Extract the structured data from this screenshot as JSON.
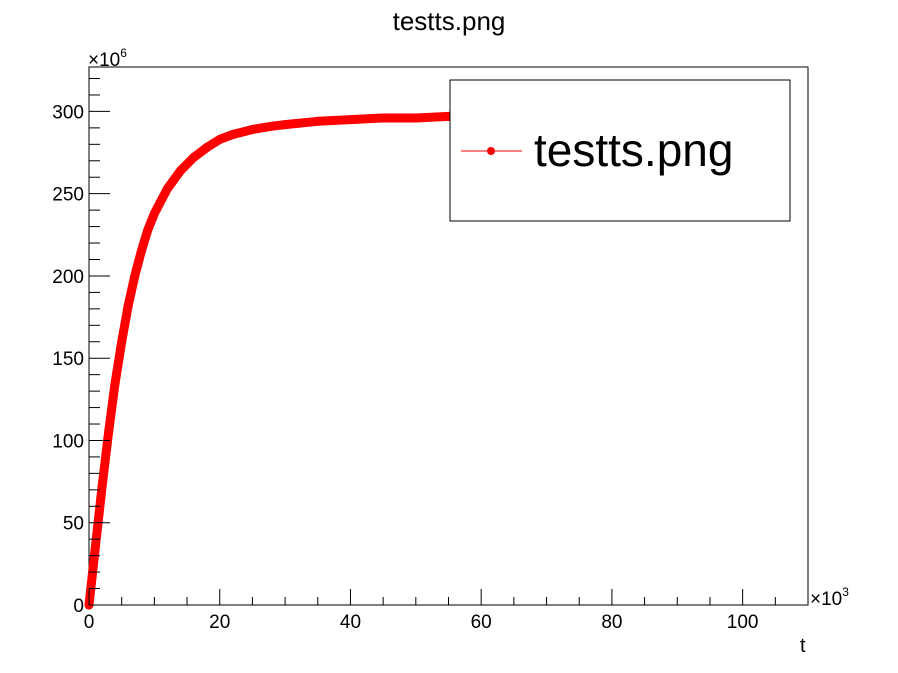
{
  "chart_data": {
    "type": "line",
    "title": "testts.png",
    "xlabel": "t",
    "ylabel": "",
    "x_multiplier_label": "×10",
    "x_multiplier_exp": "3",
    "y_multiplier_label": "×10",
    "y_multiplier_exp": "6",
    "xlim": [
      0,
      110
    ],
    "ylim": [
      0,
      327
    ],
    "x_ticks": [
      0,
      20,
      40,
      60,
      80,
      100
    ],
    "y_ticks": [
      0,
      50,
      100,
      150,
      200,
      250,
      300
    ],
    "legend": {
      "placement": "top-right",
      "entries": [
        "testts.png"
      ]
    },
    "grid": false,
    "series": [
      {
        "name": "testts.png",
        "color": "#ff0000",
        "x": [
          0,
          1,
          2,
          3,
          4,
          5,
          6,
          7,
          8,
          9,
          10,
          12,
          14,
          16,
          18,
          20,
          22,
          25,
          28,
          30,
          35,
          40,
          45,
          50,
          55,
          60
        ],
        "y": [
          0,
          36,
          72,
          105,
          135,
          160,
          182,
          200,
          215,
          228,
          238,
          253,
          264,
          272,
          278,
          283,
          286,
          289,
          291,
          292,
          294,
          295,
          296,
          296,
          297,
          297
        ]
      }
    ]
  }
}
